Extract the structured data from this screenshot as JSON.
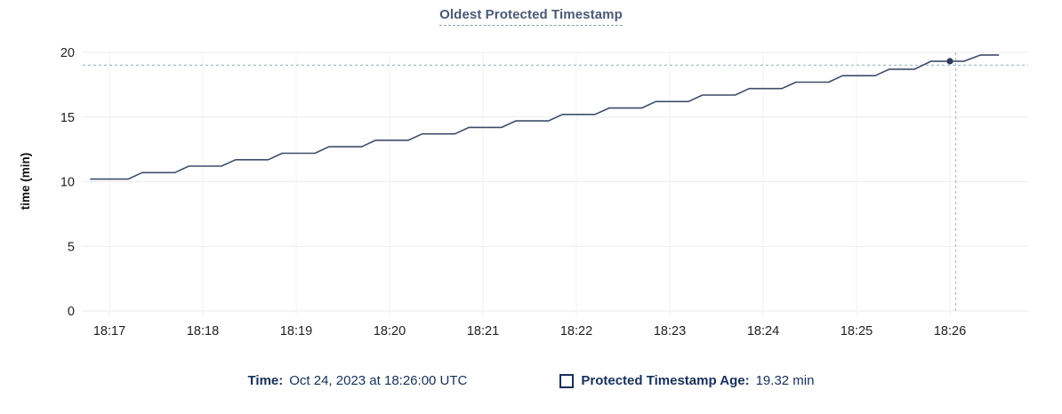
{
  "title": "Oldest Protected Timestamp",
  "tooltip": {
    "time_label": "Time:",
    "time_value": "Oct 24, 2023 at 18:26:00 UTC",
    "series_label": "Protected Timestamp Age:",
    "series_value": "19.32 min"
  },
  "colors": {
    "title": "#4a5a73",
    "legend_text": "#16305a",
    "series_line": "#3c4d69",
    "highlight_dot": "#2c3d59",
    "crosshair": "#a9bcc9",
    "h_gridline": "#e9ebee",
    "v_gridline": "#f0f2f4",
    "tick_text": "#202124"
  },
  "chart_data": {
    "type": "line",
    "title": "Oldest Protected Timestamp",
    "xlabel": "",
    "ylabel": "time (min)",
    "ylim": [
      0,
      20
    ],
    "y_ticks": [
      0,
      5,
      10,
      15,
      20
    ],
    "x_ticks": [
      "18:17",
      "18:18",
      "18:19",
      "18:20",
      "18:21",
      "18:22",
      "18:23",
      "18:24",
      "18:25",
      "18:26"
    ],
    "grid": true,
    "legend_position": "bottom",
    "series": [
      {
        "name": "Protected Timestamp Age",
        "unit": "min",
        "points_format": [
          "minutes_after_18:00_UTC",
          "age_min"
        ],
        "points": [
          [
            16.8,
            10.2
          ],
          [
            17.2,
            10.2
          ],
          [
            17.35,
            10.7
          ],
          [
            17.7,
            10.7
          ],
          [
            17.85,
            11.2
          ],
          [
            18.2,
            11.2
          ],
          [
            18.35,
            11.7
          ],
          [
            18.7,
            11.7
          ],
          [
            18.85,
            12.2
          ],
          [
            19.2,
            12.2
          ],
          [
            19.35,
            12.7
          ],
          [
            19.7,
            12.7
          ],
          [
            19.85,
            13.2
          ],
          [
            20.2,
            13.2
          ],
          [
            20.35,
            13.7
          ],
          [
            20.7,
            13.7
          ],
          [
            20.85,
            14.2
          ],
          [
            21.2,
            14.2
          ],
          [
            21.35,
            14.7
          ],
          [
            21.7,
            14.7
          ],
          [
            21.85,
            15.2
          ],
          [
            22.2,
            15.2
          ],
          [
            22.35,
            15.7
          ],
          [
            22.7,
            15.7
          ],
          [
            22.85,
            16.2
          ],
          [
            23.2,
            16.2
          ],
          [
            23.35,
            16.7
          ],
          [
            23.7,
            16.7
          ],
          [
            23.85,
            17.2
          ],
          [
            24.2,
            17.2
          ],
          [
            24.35,
            17.7
          ],
          [
            24.7,
            17.7
          ],
          [
            24.85,
            18.2
          ],
          [
            25.2,
            18.2
          ],
          [
            25.35,
            18.7
          ],
          [
            25.62,
            18.7
          ],
          [
            25.8,
            19.32
          ],
          [
            26.15,
            19.32
          ],
          [
            26.33,
            19.8
          ],
          [
            26.52,
            19.8
          ]
        ]
      }
    ],
    "highlight": {
      "time": "18:26:00",
      "t": 26.0,
      "value": 19.32
    }
  }
}
